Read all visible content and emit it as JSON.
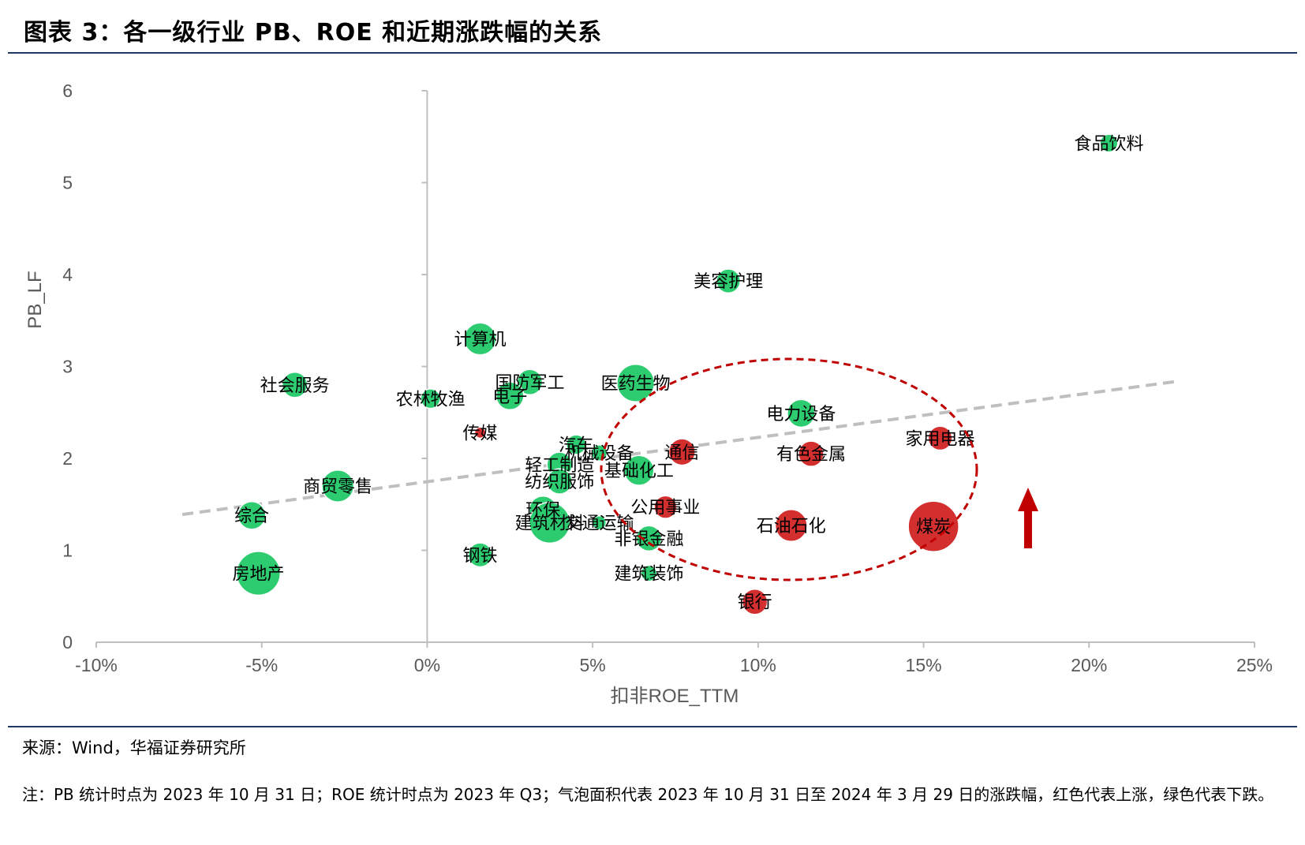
{
  "header": {
    "title": "图表 3：各一级行业 PB、ROE 和近期涨跌幅的关系"
  },
  "footer": {
    "source": "来源：Wind，华福证券研究所",
    "note": "注：PB 统计时点为 2023 年 10 月 31 日；ROE 统计时点为 2023 年 Q3；气泡面积代表 2023 年 10 月 31 日至 2024 年 3 月 29 日的涨跌幅，红色代表上涨，绿色代表下跌。"
  },
  "chart_data": {
    "type": "scatter",
    "subtype": "bubble",
    "title": "图表 3：各一级行业 PB、ROE 和近期涨跌幅的关系",
    "xlabel": "扣非ROE_TTM",
    "ylabel": "PB_LF",
    "xlim": [
      -0.1,
      0.25
    ],
    "ylim": [
      0,
      6
    ],
    "x_ticks": [
      -0.1,
      -0.05,
      0,
      0.05,
      0.1,
      0.15,
      0.2,
      0.25
    ],
    "x_tick_labels": [
      "-10%",
      "-5%",
      "0%",
      "5%",
      "10%",
      "15%",
      "20%",
      "25%"
    ],
    "y_ticks": [
      0,
      1,
      2,
      3,
      4,
      5,
      6
    ],
    "y_tick_labels": [
      "0",
      "1",
      "2",
      "3",
      "4",
      "5",
      "6"
    ],
    "colors": {
      "up": "#d32f2f",
      "down": "#2ecc71",
      "trend": "#bfbfbf",
      "ellipse": "#c00000",
      "arrow": "#c00000"
    },
    "trendline": {
      "x": [
        -0.074,
        0.227
      ],
      "y": [
        1.39,
        2.84
      ]
    },
    "bubble_size_meaning": "涨跌幅（面积）",
    "points": [
      {
        "name": "食品饮料",
        "x": 0.206,
        "y": 5.43,
        "size": 0.05,
        "dir": "down"
      },
      {
        "name": "美容护理",
        "x": 0.091,
        "y": 3.93,
        "size": 0.09,
        "dir": "down"
      },
      {
        "name": "计算机",
        "x": 0.016,
        "y": 3.3,
        "size": 0.16,
        "dir": "down"
      },
      {
        "name": "社会服务",
        "x": -0.04,
        "y": 2.8,
        "size": 0.1,
        "dir": "down"
      },
      {
        "name": "农林牧渔",
        "x": 0.001,
        "y": 2.65,
        "size": 0.06,
        "dir": "down"
      },
      {
        "name": "国防军工",
        "x": 0.031,
        "y": 2.83,
        "size": 0.1,
        "dir": "down"
      },
      {
        "name": "电子",
        "x": 0.025,
        "y": 2.68,
        "size": 0.12,
        "dir": "down"
      },
      {
        "name": "医药生物",
        "x": 0.063,
        "y": 2.82,
        "size": 0.22,
        "dir": "down"
      },
      {
        "name": "传媒",
        "x": 0.016,
        "y": 2.28,
        "size": 0.01,
        "dir": "up"
      },
      {
        "name": "汽车",
        "x": 0.045,
        "y": 2.15,
        "size": 0.06,
        "dir": "down"
      },
      {
        "name": "机械设备",
        "x": 0.052,
        "y": 2.06,
        "size": 0.04,
        "dir": "down"
      },
      {
        "name": "通信",
        "x": 0.077,
        "y": 2.07,
        "size": 0.11,
        "dir": "up"
      },
      {
        "name": "轻工制造",
        "x": 0.04,
        "y": 1.93,
        "size": 0.1,
        "dir": "down"
      },
      {
        "name": "基础化工",
        "x": 0.064,
        "y": 1.87,
        "size": 0.14,
        "dir": "down"
      },
      {
        "name": "纺织服饰",
        "x": 0.04,
        "y": 1.75,
        "size": 0.1,
        "dir": "down"
      },
      {
        "name": "商贸零售",
        "x": -0.027,
        "y": 1.7,
        "size": 0.16,
        "dir": "down"
      },
      {
        "name": "综合",
        "x": -0.053,
        "y": 1.38,
        "size": 0.12,
        "dir": "down"
      },
      {
        "name": "环保",
        "x": 0.035,
        "y": 1.44,
        "size": 0.12,
        "dir": "down"
      },
      {
        "name": "建筑材料",
        "x": 0.037,
        "y": 1.3,
        "size": 0.26,
        "dir": "down"
      },
      {
        "name": "交通运输",
        "x": 0.052,
        "y": 1.3,
        "size": 0.03,
        "dir": "down"
      },
      {
        "name": "公用事业",
        "x": 0.072,
        "y": 1.47,
        "size": 0.08,
        "dir": "up"
      },
      {
        "name": "非银金融",
        "x": 0.067,
        "y": 1.13,
        "size": 0.1,
        "dir": "down"
      },
      {
        "name": "钢铁",
        "x": 0.016,
        "y": 0.95,
        "size": 0.09,
        "dir": "down"
      },
      {
        "name": "房地产",
        "x": -0.051,
        "y": 0.75,
        "size": 0.3,
        "dir": "down"
      },
      {
        "name": "建筑装饰",
        "x": 0.067,
        "y": 0.75,
        "size": 0.04,
        "dir": "down"
      },
      {
        "name": "电力设备",
        "x": 0.113,
        "y": 2.49,
        "size": 0.12,
        "dir": "down"
      },
      {
        "name": "家用电器",
        "x": 0.155,
        "y": 2.22,
        "size": 0.09,
        "dir": "up"
      },
      {
        "name": "有色金属",
        "x": 0.116,
        "y": 2.05,
        "size": 0.1,
        "dir": "up"
      },
      {
        "name": "石油石化",
        "x": 0.11,
        "y": 1.27,
        "size": 0.16,
        "dir": "up"
      },
      {
        "name": "煤炭",
        "x": 0.153,
        "y": 1.26,
        "size": 0.4,
        "dir": "up"
      },
      {
        "name": "银行",
        "x": 0.099,
        "y": 0.44,
        "size": 0.1,
        "dir": "up"
      }
    ]
  }
}
